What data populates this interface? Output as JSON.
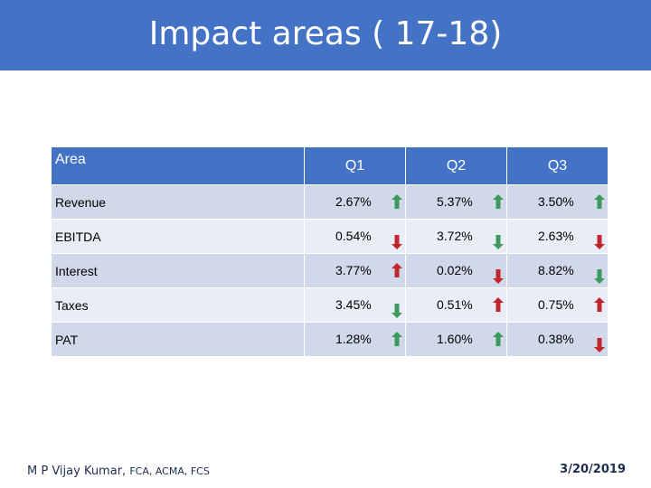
{
  "title": "Impact areas ( 17-18)",
  "table": {
    "headers": [
      "Area",
      "Q1",
      "Q2",
      "Q3"
    ],
    "rows": [
      {
        "area": "Revenue",
        "q": [
          {
            "value": "2.67%",
            "trend": "up-green"
          },
          {
            "value": "5.37%",
            "trend": "up-green"
          },
          {
            "value": "3.50%",
            "trend": "up-green"
          }
        ]
      },
      {
        "area": "EBITDA",
        "q": [
          {
            "value": "0.54%",
            "trend": "down-red"
          },
          {
            "value": "3.72%",
            "trend": "down-green"
          },
          {
            "value": "2.63%",
            "trend": "down-red"
          }
        ]
      },
      {
        "area": "Interest",
        "q": [
          {
            "value": "3.77%",
            "trend": "up-red"
          },
          {
            "value": "0.02%",
            "trend": "down-red"
          },
          {
            "value": "8.82%",
            "trend": "down-green"
          }
        ]
      },
      {
        "area": "Taxes",
        "q": [
          {
            "value": "3.45%",
            "trend": "down-green"
          },
          {
            "value": "0.51%",
            "trend": "up-red"
          },
          {
            "value": "0.75%",
            "trend": "up-red"
          }
        ]
      },
      {
        "area": "PAT",
        "q": [
          {
            "value": "1.28%",
            "trend": "up-green"
          },
          {
            "value": "1.60%",
            "trend": "up-green"
          },
          {
            "value": "0.38%",
            "trend": "down-red"
          }
        ]
      }
    ]
  },
  "footer": {
    "author": "M P Vijay Kumar,",
    "qualifications": "FCA, ACMA, FCS",
    "date": "3/20/2019"
  },
  "colors": {
    "header": "#4472c4",
    "green": "#3c9a5f",
    "red": "#c0262c"
  }
}
